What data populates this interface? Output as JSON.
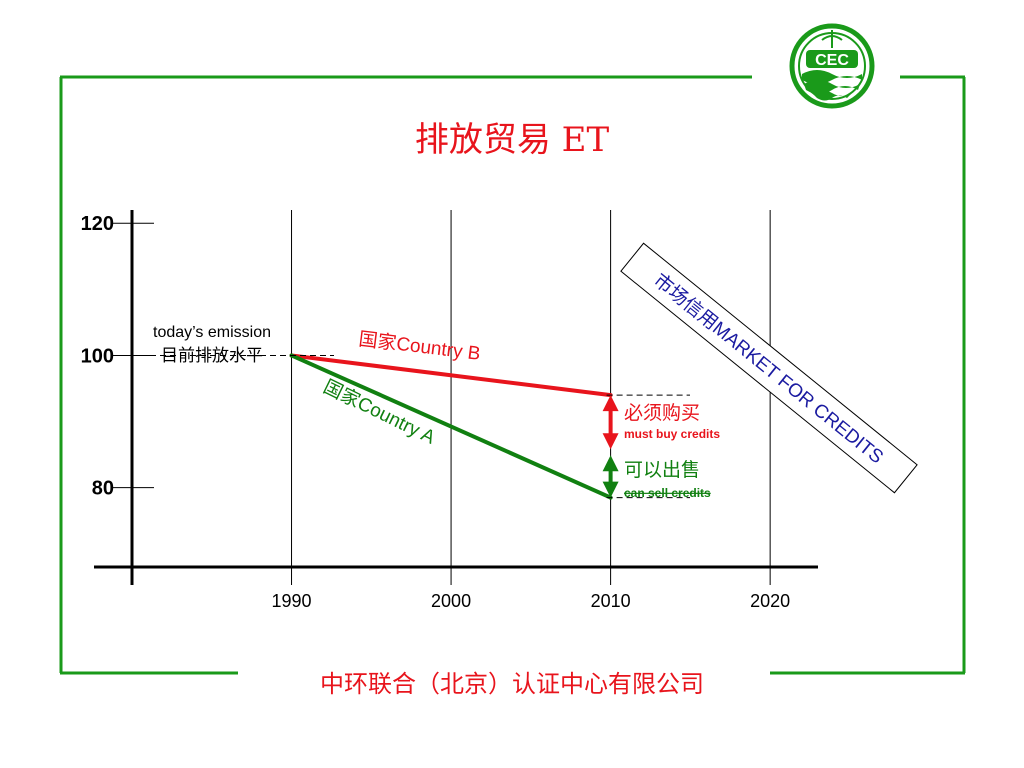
{
  "slide": {
    "title": "排放贸易 ET",
    "footer": "中环联合（北京）认证中心有限公司",
    "logo_text": "CEC"
  },
  "colors": {
    "frame": "#1a9a1a",
    "title": "#e8141c",
    "footer": "#e8141c",
    "country_a": "#118011",
    "country_b": "#e8141c",
    "market_text": "#1a1aa0",
    "axis": "#000000"
  },
  "icons": {
    "logo": "cec-logo-icon"
  },
  "chart_data": {
    "type": "line",
    "xlim": [
      1980,
      2023
    ],
    "ylim": [
      68,
      122
    ],
    "x_ticks": [
      {
        "value": 1990,
        "label": "1990"
      },
      {
        "value": 2000,
        "label": "2000"
      },
      {
        "value": 2010,
        "label": "2010"
      },
      {
        "value": 2020,
        "label": "2020"
      }
    ],
    "y_ticks": [
      {
        "value": 120,
        "label": "120"
      },
      {
        "value": 100,
        "label": "100"
      },
      {
        "value": 80,
        "label": "80"
      }
    ],
    "grid_x": true,
    "series": [
      {
        "key": "country_b",
        "name": "国家Country B",
        "points": [
          [
            1990,
            100
          ],
          [
            2010,
            94
          ]
        ]
      },
      {
        "key": "country_a",
        "name": "国家Country A",
        "points": [
          [
            1990,
            100
          ],
          [
            2010,
            78.5
          ]
        ]
      }
    ],
    "baseline": {
      "label_en": "today’s emission",
      "label_zh": "目前排放水平",
      "value": 100
    },
    "annotations": {
      "buy_zh": "必须购买",
      "buy_en": "must buy credits",
      "sell_zh": "可以出售",
      "sell_en": "can sell credits",
      "market": "市场信用MARKET FOR CREDITS"
    }
  }
}
